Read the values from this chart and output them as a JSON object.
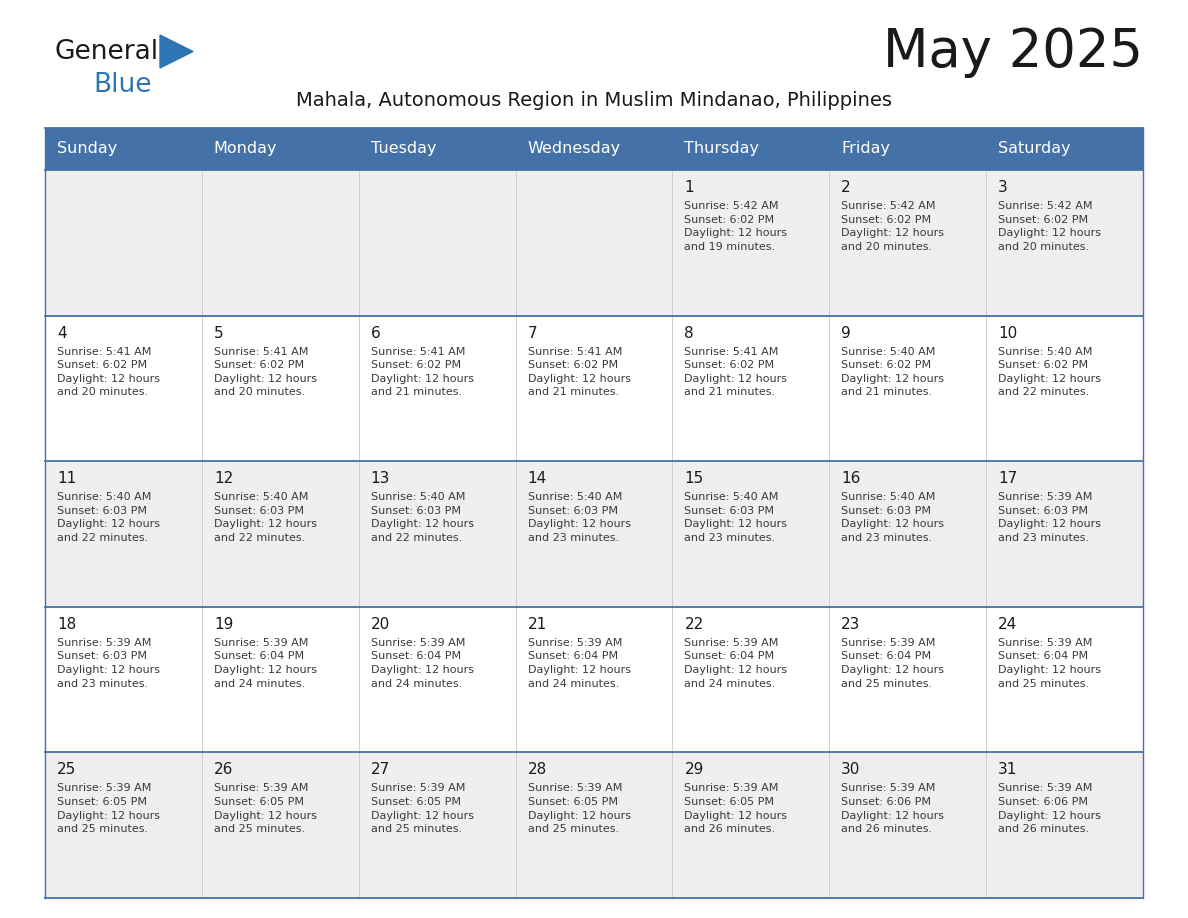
{
  "title": "May 2025",
  "subtitle": "Mahala, Autonomous Region in Muslim Mindanao, Philippines",
  "days_of_week": [
    "Sunday",
    "Monday",
    "Tuesday",
    "Wednesday",
    "Thursday",
    "Friday",
    "Saturday"
  ],
  "header_bg": "#4472a8",
  "header_text": "#ffffff",
  "row_bg_odd": "#efefef",
  "row_bg_even": "#ffffff",
  "cell_border_color": "#4472a8",
  "title_color": "#1a1a1a",
  "subtitle_color": "#1a1a1a",
  "day_num_color": "#1a1a1a",
  "detail_color": "#3a3a3a",
  "logo_general_color": "#1a1a1a",
  "logo_blue_color": "#2e75b6",
  "logo_triangle_color": "#2e75b6",
  "weeks": [
    [
      {
        "day": null,
        "info": null
      },
      {
        "day": null,
        "info": null
      },
      {
        "day": null,
        "info": null
      },
      {
        "day": null,
        "info": null
      },
      {
        "day": 1,
        "info": "Sunrise: 5:42 AM\nSunset: 6:02 PM\nDaylight: 12 hours\nand 19 minutes."
      },
      {
        "day": 2,
        "info": "Sunrise: 5:42 AM\nSunset: 6:02 PM\nDaylight: 12 hours\nand 20 minutes."
      },
      {
        "day": 3,
        "info": "Sunrise: 5:42 AM\nSunset: 6:02 PM\nDaylight: 12 hours\nand 20 minutes."
      }
    ],
    [
      {
        "day": 4,
        "info": "Sunrise: 5:41 AM\nSunset: 6:02 PM\nDaylight: 12 hours\nand 20 minutes."
      },
      {
        "day": 5,
        "info": "Sunrise: 5:41 AM\nSunset: 6:02 PM\nDaylight: 12 hours\nand 20 minutes."
      },
      {
        "day": 6,
        "info": "Sunrise: 5:41 AM\nSunset: 6:02 PM\nDaylight: 12 hours\nand 21 minutes."
      },
      {
        "day": 7,
        "info": "Sunrise: 5:41 AM\nSunset: 6:02 PM\nDaylight: 12 hours\nand 21 minutes."
      },
      {
        "day": 8,
        "info": "Sunrise: 5:41 AM\nSunset: 6:02 PM\nDaylight: 12 hours\nand 21 minutes."
      },
      {
        "day": 9,
        "info": "Sunrise: 5:40 AM\nSunset: 6:02 PM\nDaylight: 12 hours\nand 21 minutes."
      },
      {
        "day": 10,
        "info": "Sunrise: 5:40 AM\nSunset: 6:02 PM\nDaylight: 12 hours\nand 22 minutes."
      }
    ],
    [
      {
        "day": 11,
        "info": "Sunrise: 5:40 AM\nSunset: 6:03 PM\nDaylight: 12 hours\nand 22 minutes."
      },
      {
        "day": 12,
        "info": "Sunrise: 5:40 AM\nSunset: 6:03 PM\nDaylight: 12 hours\nand 22 minutes."
      },
      {
        "day": 13,
        "info": "Sunrise: 5:40 AM\nSunset: 6:03 PM\nDaylight: 12 hours\nand 22 minutes."
      },
      {
        "day": 14,
        "info": "Sunrise: 5:40 AM\nSunset: 6:03 PM\nDaylight: 12 hours\nand 23 minutes."
      },
      {
        "day": 15,
        "info": "Sunrise: 5:40 AM\nSunset: 6:03 PM\nDaylight: 12 hours\nand 23 minutes."
      },
      {
        "day": 16,
        "info": "Sunrise: 5:40 AM\nSunset: 6:03 PM\nDaylight: 12 hours\nand 23 minutes."
      },
      {
        "day": 17,
        "info": "Sunrise: 5:39 AM\nSunset: 6:03 PM\nDaylight: 12 hours\nand 23 minutes."
      }
    ],
    [
      {
        "day": 18,
        "info": "Sunrise: 5:39 AM\nSunset: 6:03 PM\nDaylight: 12 hours\nand 23 minutes."
      },
      {
        "day": 19,
        "info": "Sunrise: 5:39 AM\nSunset: 6:04 PM\nDaylight: 12 hours\nand 24 minutes."
      },
      {
        "day": 20,
        "info": "Sunrise: 5:39 AM\nSunset: 6:04 PM\nDaylight: 12 hours\nand 24 minutes."
      },
      {
        "day": 21,
        "info": "Sunrise: 5:39 AM\nSunset: 6:04 PM\nDaylight: 12 hours\nand 24 minutes."
      },
      {
        "day": 22,
        "info": "Sunrise: 5:39 AM\nSunset: 6:04 PM\nDaylight: 12 hours\nand 24 minutes."
      },
      {
        "day": 23,
        "info": "Sunrise: 5:39 AM\nSunset: 6:04 PM\nDaylight: 12 hours\nand 25 minutes."
      },
      {
        "day": 24,
        "info": "Sunrise: 5:39 AM\nSunset: 6:04 PM\nDaylight: 12 hours\nand 25 minutes."
      }
    ],
    [
      {
        "day": 25,
        "info": "Sunrise: 5:39 AM\nSunset: 6:05 PM\nDaylight: 12 hours\nand 25 minutes."
      },
      {
        "day": 26,
        "info": "Sunrise: 5:39 AM\nSunset: 6:05 PM\nDaylight: 12 hours\nand 25 minutes."
      },
      {
        "day": 27,
        "info": "Sunrise: 5:39 AM\nSunset: 6:05 PM\nDaylight: 12 hours\nand 25 minutes."
      },
      {
        "day": 28,
        "info": "Sunrise: 5:39 AM\nSunset: 6:05 PM\nDaylight: 12 hours\nand 25 minutes."
      },
      {
        "day": 29,
        "info": "Sunrise: 5:39 AM\nSunset: 6:05 PM\nDaylight: 12 hours\nand 26 minutes."
      },
      {
        "day": 30,
        "info": "Sunrise: 5:39 AM\nSunset: 6:06 PM\nDaylight: 12 hours\nand 26 minutes."
      },
      {
        "day": 31,
        "info": "Sunrise: 5:39 AM\nSunset: 6:06 PM\nDaylight: 12 hours\nand 26 minutes."
      }
    ]
  ]
}
